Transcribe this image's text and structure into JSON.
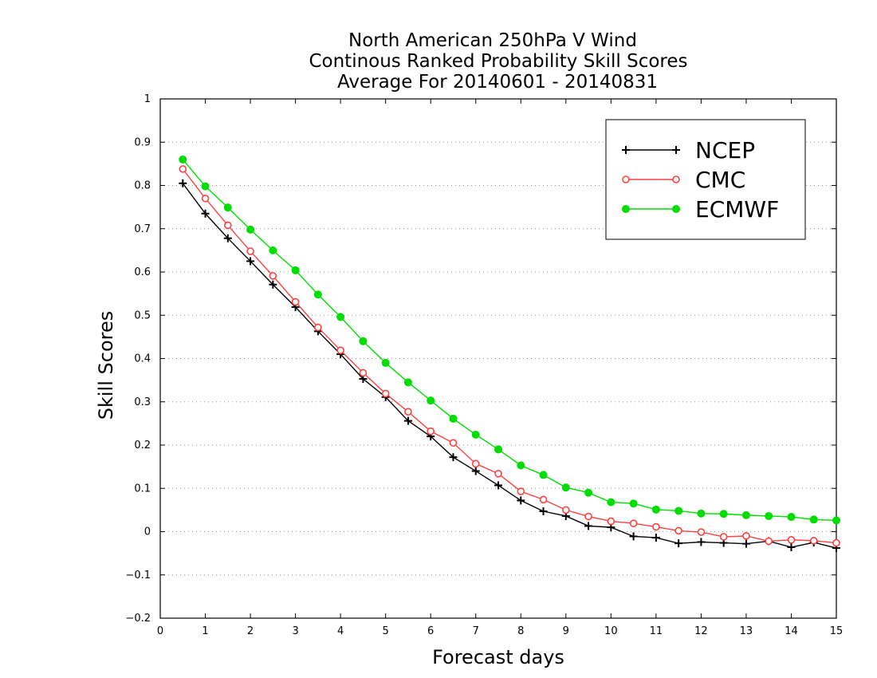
{
  "chart_data": {
    "type": "line",
    "title": [
      "North American 250hPa V Wind",
      "Continous Ranked Probability Skill Scores",
      "Average For 20140601 - 20140831"
    ],
    "xlabel": "Forecast days",
    "ylabel": "Skill Scores",
    "xlim": [
      0,
      15
    ],
    "ylim": [
      -0.2,
      1
    ],
    "xticks": [
      "0",
      "1",
      "2",
      "3",
      "4",
      "5",
      "6",
      "7",
      "8",
      "9",
      "10",
      "11",
      "12",
      "13",
      "14",
      "15"
    ],
    "yticks": [
      "−0.2",
      "−0.1",
      "0",
      "0.1",
      "0.2",
      "0.3",
      "0.4",
      "0.5",
      "0.6",
      "0.7",
      "0.8",
      "0.9",
      "1"
    ],
    "grid": "horizontal dotted",
    "legend_position": "top-right",
    "x": [
      0.5,
      1,
      1.5,
      2,
      2.5,
      3,
      3.5,
      4,
      4.5,
      5,
      5.5,
      6,
      6.5,
      7,
      7.5,
      8,
      8.5,
      9,
      9.5,
      10,
      10.5,
      11,
      11.5,
      12,
      12.5,
      13,
      13.5,
      14,
      14.5,
      15
    ],
    "series": [
      {
        "name": "NCEP",
        "color": "#000000",
        "marker": "plus",
        "values": [
          0.805,
          0.735,
          0.678,
          0.625,
          0.571,
          0.519,
          0.463,
          0.41,
          0.353,
          0.311,
          0.256,
          0.22,
          0.172,
          0.14,
          0.107,
          0.072,
          0.047,
          0.036,
          0.013,
          0.01,
          -0.011,
          -0.014,
          -0.027,
          -0.024,
          -0.026,
          -0.028,
          -0.022,
          -0.036,
          -0.025,
          -0.038
        ]
      },
      {
        "name": "CMC",
        "color": "#ff4040",
        "marker": "open-circle",
        "values": [
          0.838,
          0.77,
          0.708,
          0.648,
          0.591,
          0.531,
          0.472,
          0.419,
          0.367,
          0.319,
          0.277,
          0.232,
          0.205,
          0.157,
          0.134,
          0.093,
          0.074,
          0.05,
          0.035,
          0.024,
          0.019,
          0.011,
          0.002,
          -0.001,
          -0.012,
          -0.01,
          -0.022,
          -0.019,
          -0.021,
          -0.026
        ]
      },
      {
        "name": "ECMWF",
        "color": "#00dd00",
        "marker": "filled-circle",
        "values": [
          0.86,
          0.798,
          0.749,
          0.698,
          0.65,
          0.604,
          0.548,
          0.496,
          0.44,
          0.39,
          0.345,
          0.303,
          0.261,
          0.224,
          0.19,
          0.153,
          0.131,
          0.102,
          0.09,
          0.068,
          0.065,
          0.051,
          0.048,
          0.042,
          0.041,
          0.038,
          0.036,
          0.034,
          0.028,
          0.026
        ]
      }
    ]
  }
}
